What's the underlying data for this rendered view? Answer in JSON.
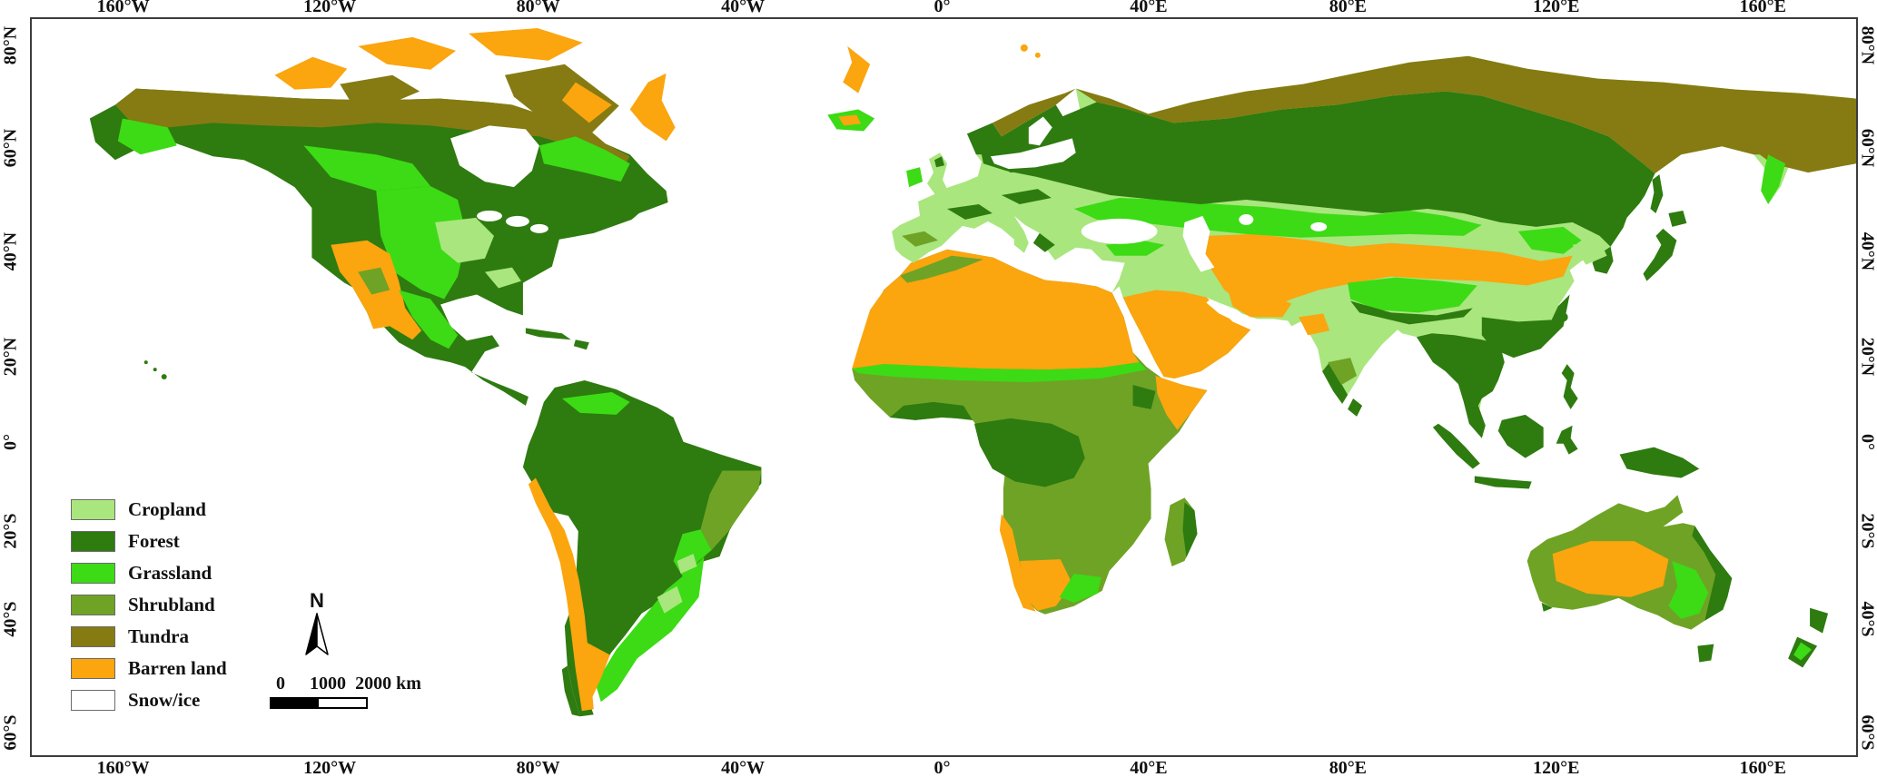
{
  "figure": {
    "kind": "global land cover classification map"
  },
  "axes": {
    "lon": {
      "ticks": [
        {
          "label": "160°W",
          "pos": 5.1
        },
        {
          "label": "120°W",
          "pos": 16.4
        },
        {
          "label": "80°W",
          "pos": 27.8
        },
        {
          "label": "40°W",
          "pos": 39.0
        },
        {
          "label": "0°",
          "pos": 49.9
        },
        {
          "label": "40°E",
          "pos": 61.2
        },
        {
          "label": "80°E",
          "pos": 72.1
        },
        {
          "label": "120°E",
          "pos": 83.5
        },
        {
          "label": "160°E",
          "pos": 94.8
        }
      ]
    },
    "lat": {
      "ticks": [
        {
          "label": "80°N",
          "pos": 3.8
        },
        {
          "label": "60°N",
          "pos": 17.7
        },
        {
          "label": "40°N",
          "pos": 31.7
        },
        {
          "label": "20°N",
          "pos": 45.9
        },
        {
          "label": "0°",
          "pos": 57.4
        },
        {
          "label": "20°S",
          "pos": 69.5
        },
        {
          "label": "40°S",
          "pos": 81.3
        },
        {
          "label": "60°S",
          "pos": 96.7
        }
      ]
    }
  },
  "legend": {
    "items": [
      {
        "key": "cropland",
        "label": "Cropland",
        "color": "#A9E67E"
      },
      {
        "key": "forest",
        "label": "Forest",
        "color": "#2E7B10"
      },
      {
        "key": "grassland",
        "label": "Grassland",
        "color": "#3CDB15"
      },
      {
        "key": "shrubland",
        "label": "Shrubland",
        "color": "#6FA325"
      },
      {
        "key": "tundra",
        "label": "Tundra",
        "color": "#857B12"
      },
      {
        "key": "barren",
        "label": "Barren land",
        "color": "#FBA50F"
      },
      {
        "key": "snow",
        "label": "Snow/ice",
        "color": "#FFFFFF"
      }
    ]
  },
  "compass": {
    "label": "N"
  },
  "scalebar": {
    "labels": [
      "0",
      "1000",
      "2000"
    ],
    "unit": "km"
  },
  "map": {
    "background": "#FFFFFF",
    "frame_color": "#3C3C3C"
  }
}
